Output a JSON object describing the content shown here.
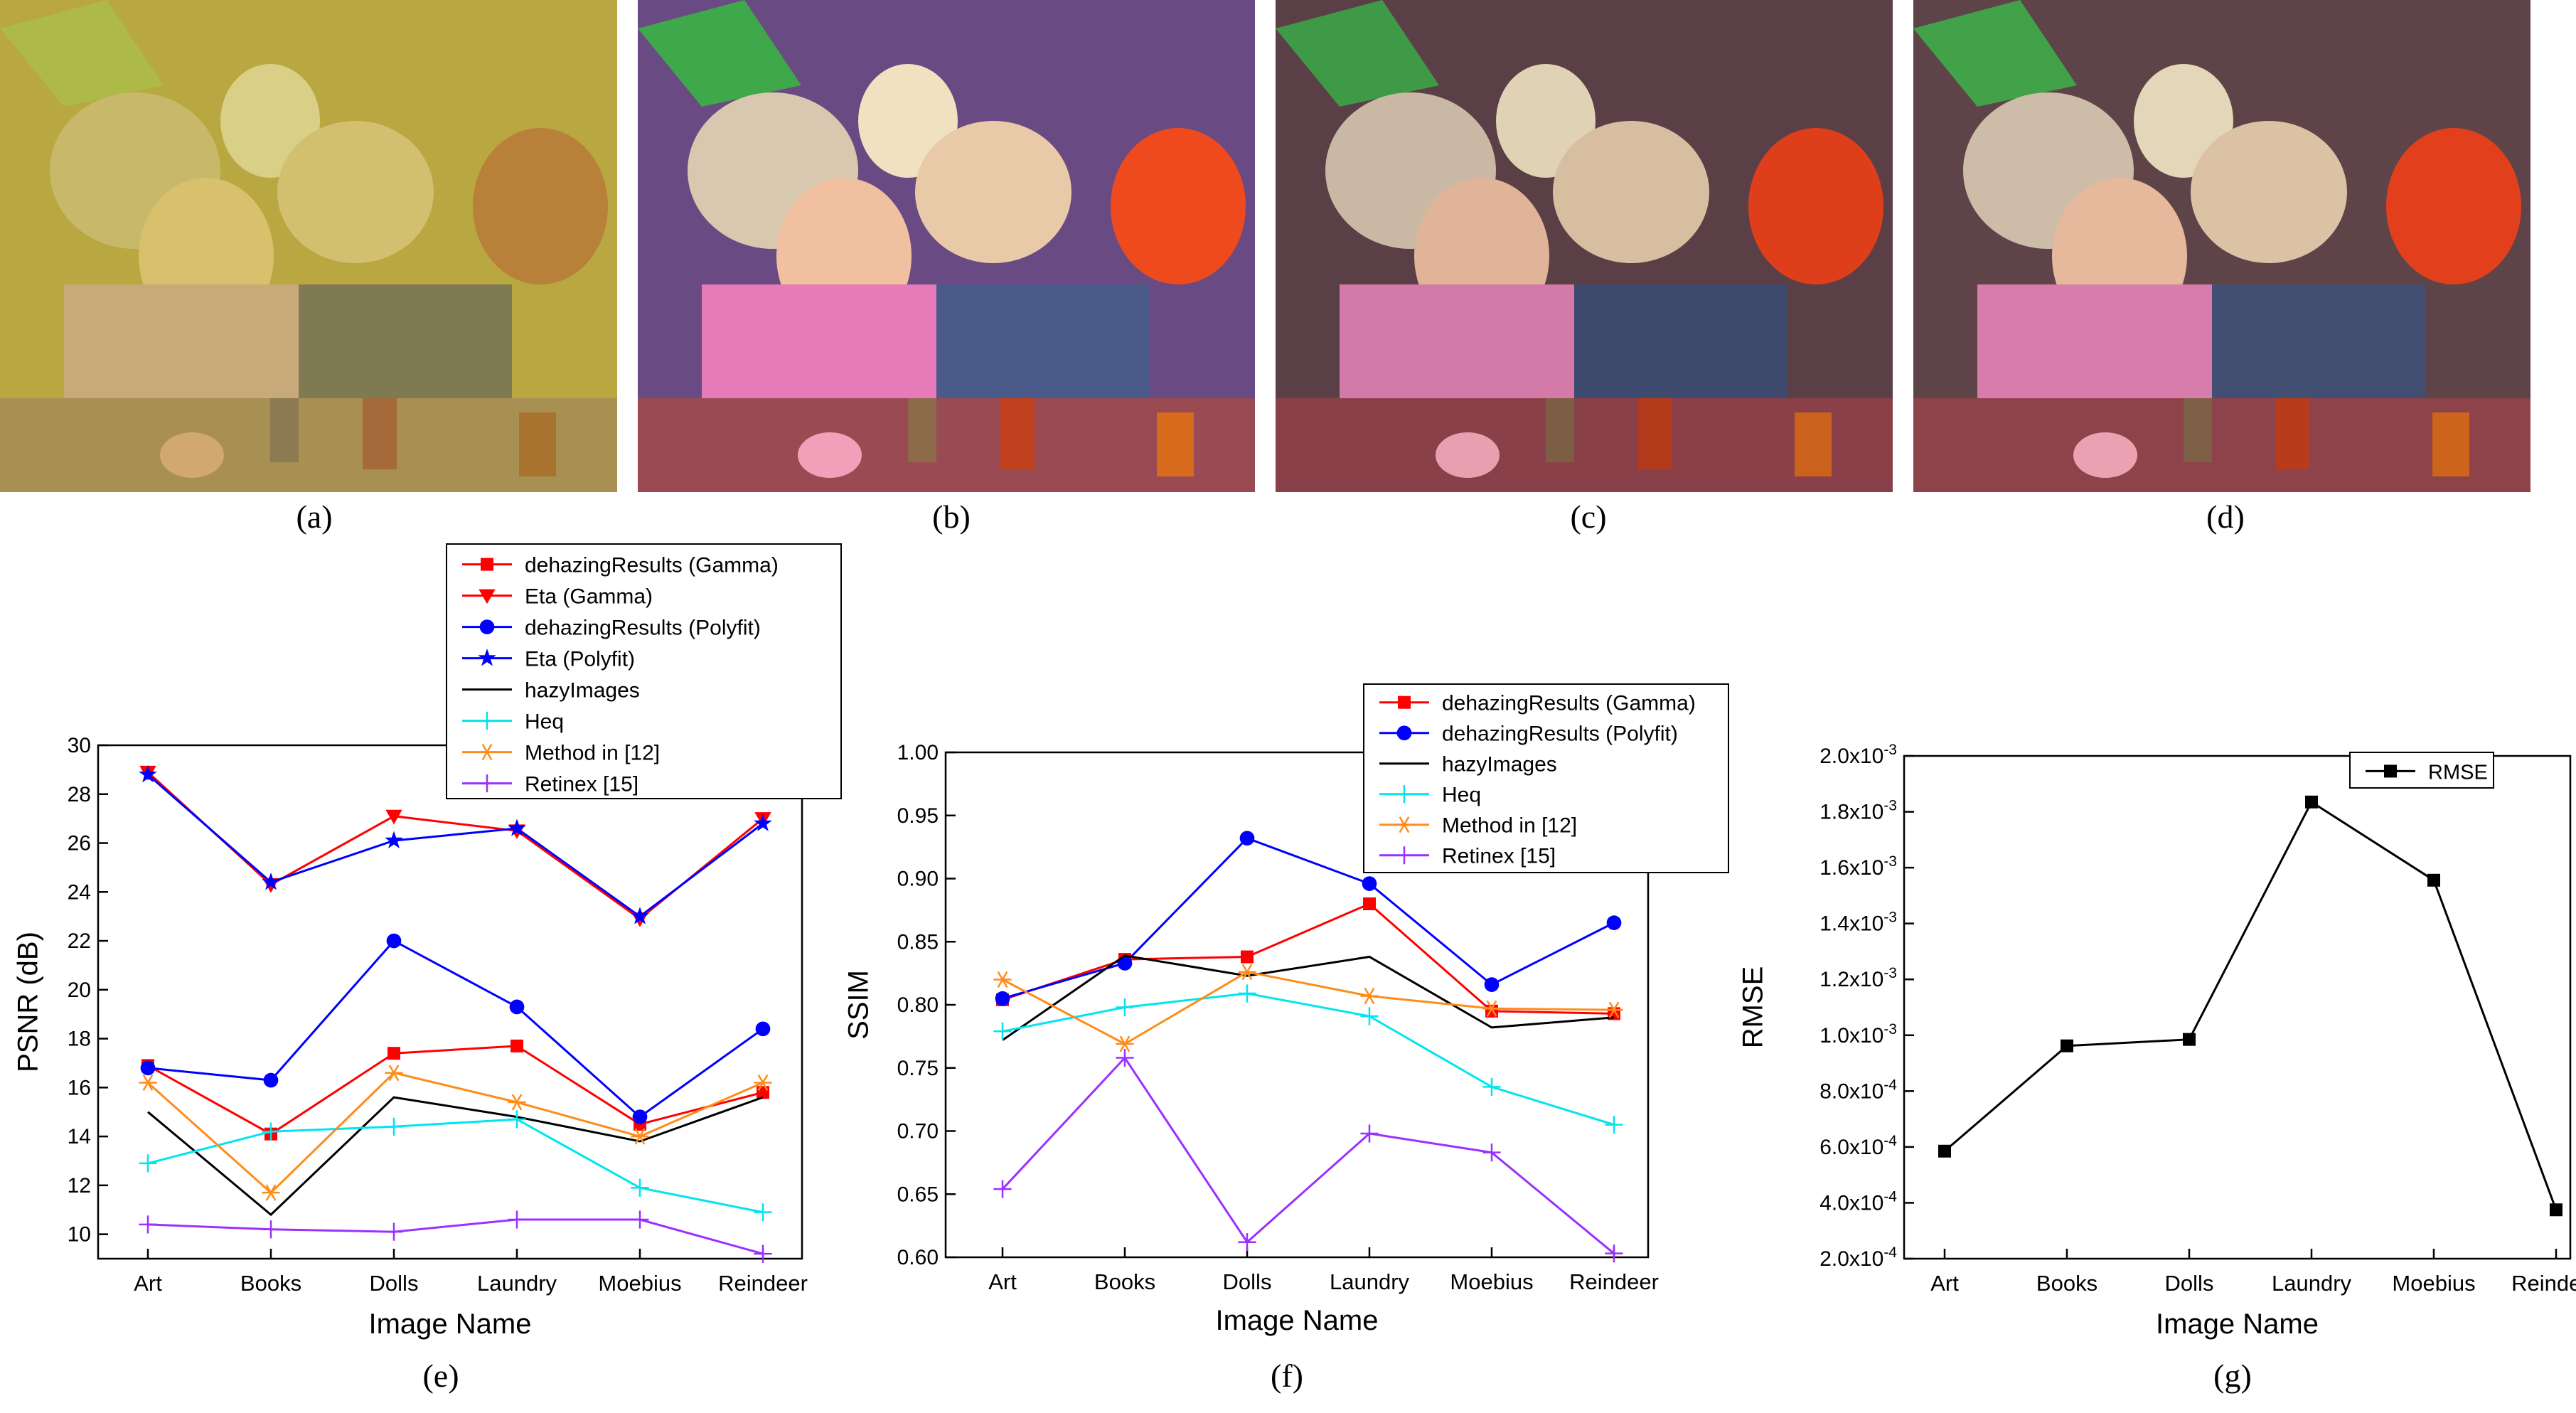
{
  "photos": [
    {
      "label": "(a)",
      "tint": "#bca63c"
    },
    {
      "label": "(b)",
      "tint": "#7a4a8a"
    },
    {
      "label": "(c)",
      "tint": "#6a4a52"
    },
    {
      "label": "(d)",
      "tint": "#6e4e50"
    }
  ],
  "chart_labels": [
    "(e)",
    "(f)",
    "(g)"
  ],
  "chart_data": [
    {
      "type": "line",
      "categories": [
        "Art",
        "Books",
        "Dolls",
        "Laundry",
        "Moebius",
        "Reindeer"
      ],
      "xlabel": "Image Name",
      "ylabel": "PSNR (dB)",
      "ylim": [
        9,
        30
      ],
      "yticks": [
        "10",
        "12",
        "14",
        "16",
        "18",
        "20",
        "22",
        "24",
        "26",
        "28",
        "30"
      ],
      "legend_position": "top",
      "series": [
        {
          "name": "dehazingResults (Gamma)",
          "color": "#ff0000",
          "marker": "square",
          "values": [
            16.9,
            14.1,
            17.4,
            17.7,
            14.5,
            15.8
          ]
        },
        {
          "name": "Eta (Gamma)",
          "color": "#ff0000",
          "marker": "triangle-down",
          "values": [
            28.9,
            24.3,
            27.1,
            26.5,
            22.9,
            27.0
          ]
        },
        {
          "name": "dehazingResults (Polyfit)",
          "color": "#0000ff",
          "marker": "circle",
          "values": [
            16.8,
            16.3,
            22.0,
            19.3,
            14.8,
            18.4
          ]
        },
        {
          "name": "Eta (Polyfit)",
          "color": "#0000ff",
          "marker": "star",
          "values": [
            28.8,
            24.4,
            26.1,
            26.6,
            23.0,
            26.8
          ]
        },
        {
          "name": "hazyImages",
          "color": "#000000",
          "marker": "none",
          "values": [
            15.0,
            10.8,
            15.6,
            14.8,
            13.8,
            15.6
          ]
        },
        {
          "name": "Heq",
          "color": "#00e5ee",
          "marker": "plus",
          "values": [
            12.9,
            14.2,
            14.4,
            14.7,
            11.9,
            10.9
          ]
        },
        {
          "name": "Method in [12]",
          "color": "#ff8c1a",
          "marker": "asterisk",
          "values": [
            16.2,
            11.7,
            16.6,
            15.4,
            14.0,
            16.2
          ]
        },
        {
          "name": "Retinex [15]",
          "color": "#9b30ff",
          "marker": "plus",
          "values": [
            10.4,
            10.2,
            10.1,
            10.6,
            10.6,
            9.2
          ]
        }
      ]
    },
    {
      "type": "line",
      "categories": [
        "Art",
        "Books",
        "Dolls",
        "Laundry",
        "Moebius",
        "Reindeer"
      ],
      "xlabel": "Image Name",
      "ylabel": "SSIM",
      "ylim": [
        0.6,
        1.0
      ],
      "yticks": [
        "0.60",
        "0.65",
        "0.70",
        "0.75",
        "0.80",
        "0.85",
        "0.90",
        "0.95",
        "1.00"
      ],
      "legend_position": "top-right",
      "series": [
        {
          "name": "dehazingResults (Gamma)",
          "color": "#ff0000",
          "marker": "square",
          "values": [
            0.804,
            0.836,
            0.838,
            0.88,
            0.795,
            0.793
          ]
        },
        {
          "name": "dehazingResults (Polyfit)",
          "color": "#0000ff",
          "marker": "circle",
          "values": [
            0.805,
            0.833,
            0.932,
            0.896,
            0.816,
            0.865
          ]
        },
        {
          "name": "hazyImages",
          "color": "#000000",
          "marker": "none",
          "values": [
            0.772,
            0.839,
            0.823,
            0.838,
            0.782,
            0.79
          ]
        },
        {
          "name": "Heq",
          "color": "#00e5ee",
          "marker": "plus",
          "values": [
            0.779,
            0.798,
            0.809,
            0.791,
            0.735,
            0.705
          ]
        },
        {
          "name": "Method in [12]",
          "color": "#ff8c1a",
          "marker": "asterisk",
          "values": [
            0.82,
            0.769,
            0.826,
            0.807,
            0.797,
            0.796
          ]
        },
        {
          "name": "Retinex [15]",
          "color": "#9b30ff",
          "marker": "plus",
          "values": [
            0.654,
            0.758,
            0.612,
            0.698,
            0.683,
            0.603
          ]
        }
      ]
    },
    {
      "type": "line",
      "categories": [
        "Art",
        "Books",
        "Dolls",
        "Laundry",
        "Moebius",
        "Reindeer"
      ],
      "xlabel": "Image Name",
      "ylabel": "RMSE",
      "ylim": [
        0.0002,
        0.002
      ],
      "yticks": [
        "2.0x10^-4",
        "4.0x10^-4",
        "6.0x10^-4",
        "8.0x10^-4",
        "1.0x10^-3",
        "1.2x10^-3",
        "1.4x10^-3",
        "1.6x10^-3",
        "1.8x10^-3",
        "2.0x10^-3"
      ],
      "legend_position": "top-right",
      "series": [
        {
          "name": "RMSE",
          "color": "#000000",
          "marker": "square",
          "values": [
            0.000585,
            0.000962,
            0.000985,
            0.001835,
            0.001555,
            0.000375
          ]
        }
      ]
    }
  ]
}
